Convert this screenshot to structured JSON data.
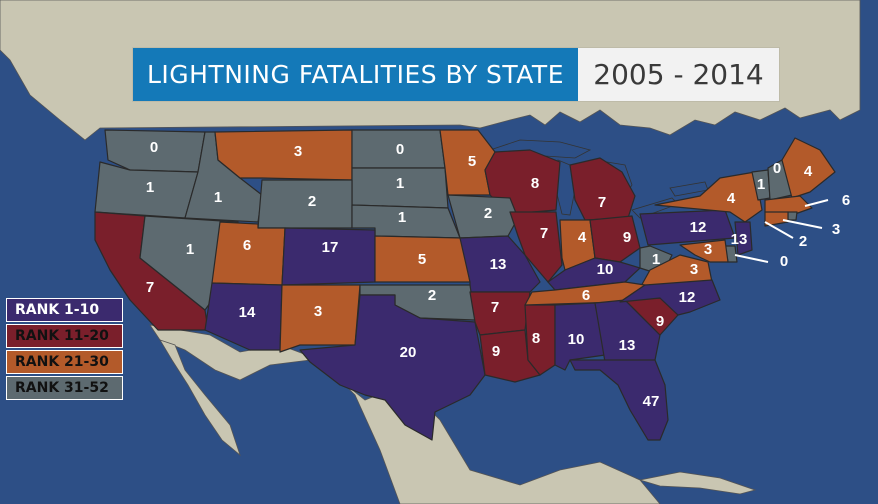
{
  "title": "LIGHTNING FATALITIES BY STATE",
  "years": "2005 - 2014",
  "colors": {
    "ocean": "#2d4f86",
    "land": "#c9c6b2",
    "rank_1_10": "#3b2a6e",
    "rank_11_20": "#7a1f2b",
    "rank_21_30": "#b35a2a",
    "rank_31_52": "#5d6a70"
  },
  "legend": [
    {
      "label": "RANK 1-10",
      "color": "#3b2a6e"
    },
    {
      "label": "RANK 11-20",
      "color": "#7a1f2b"
    },
    {
      "label": "RANK 21-30",
      "color": "#b35a2a"
    },
    {
      "label": "RANK 31-52",
      "color": "#5d6a70"
    }
  ],
  "states": [
    {
      "id": "WA",
      "value": "0",
      "rank_group": "31-52"
    },
    {
      "id": "OR",
      "value": "1",
      "rank_group": "31-52"
    },
    {
      "id": "ID",
      "value": "1",
      "rank_group": "31-52"
    },
    {
      "id": "MT",
      "value": "3",
      "rank_group": "21-30"
    },
    {
      "id": "ND",
      "value": "0",
      "rank_group": "31-52"
    },
    {
      "id": "MN",
      "value": "5",
      "rank_group": "21-30"
    },
    {
      "id": "WI",
      "value": "8",
      "rank_group": "11-20"
    },
    {
      "id": "MI",
      "value": "7",
      "rank_group": "11-20"
    },
    {
      "id": "SD",
      "value": "1",
      "rank_group": "31-52"
    },
    {
      "id": "WY",
      "value": "2",
      "rank_group": "31-52"
    },
    {
      "id": "NE",
      "value": "1",
      "rank_group": "31-52"
    },
    {
      "id": "IA",
      "value": "2",
      "rank_group": "31-52"
    },
    {
      "id": "IL",
      "value": "7",
      "rank_group": "11-20"
    },
    {
      "id": "IN",
      "value": "4",
      "rank_group": "21-30"
    },
    {
      "id": "OH",
      "value": "9",
      "rank_group": "11-20"
    },
    {
      "id": "PA",
      "value": "12",
      "rank_group": "1-10"
    },
    {
      "id": "NY",
      "value": "4",
      "rank_group": "21-30"
    },
    {
      "id": "VT",
      "value": "1",
      "rank_group": "31-52"
    },
    {
      "id": "NH",
      "value": "0",
      "rank_group": "31-52"
    },
    {
      "id": "ME",
      "value": "4",
      "rank_group": "21-30"
    },
    {
      "id": "MA",
      "value": "6",
      "rank_group": "21-30"
    },
    {
      "id": "RI",
      "value": "2",
      "rank_group": "31-52"
    },
    {
      "id": "CT",
      "value": "3",
      "rank_group": "21-30"
    },
    {
      "id": "NJ",
      "value": "13",
      "rank_group": "1-10"
    },
    {
      "id": "DE",
      "value": "0",
      "rank_group": "31-52"
    },
    {
      "id": "MD",
      "value": "3",
      "rank_group": "21-30"
    },
    {
      "id": "CA",
      "value": "7",
      "rank_group": "11-20"
    },
    {
      "id": "NV",
      "value": "1",
      "rank_group": "31-52"
    },
    {
      "id": "UT",
      "value": "6",
      "rank_group": "21-30"
    },
    {
      "id": "CO",
      "value": "17",
      "rank_group": "1-10"
    },
    {
      "id": "KS",
      "value": "5",
      "rank_group": "21-30"
    },
    {
      "id": "MO",
      "value": "13",
      "rank_group": "1-10"
    },
    {
      "id": "KY",
      "value": "10",
      "rank_group": "1-10"
    },
    {
      "id": "WV",
      "value": "1",
      "rank_group": "31-52"
    },
    {
      "id": "VA",
      "value": "3",
      "rank_group": "21-30"
    },
    {
      "id": "AZ",
      "value": "14",
      "rank_group": "1-10"
    },
    {
      "id": "NM",
      "value": "3",
      "rank_group": "21-30"
    },
    {
      "id": "OK",
      "value": "2",
      "rank_group": "31-52"
    },
    {
      "id": "AR",
      "value": "7",
      "rank_group": "11-20"
    },
    {
      "id": "TN",
      "value": "6",
      "rank_group": "21-30"
    },
    {
      "id": "NC",
      "value": "12",
      "rank_group": "1-10"
    },
    {
      "id": "SC",
      "value": "9",
      "rank_group": "11-20"
    },
    {
      "id": "TX",
      "value": "20",
      "rank_group": "1-10"
    },
    {
      "id": "LA",
      "value": "9",
      "rank_group": "11-20"
    },
    {
      "id": "MS",
      "value": "8",
      "rank_group": "11-20"
    },
    {
      "id": "AL",
      "value": "10",
      "rank_group": "1-10"
    },
    {
      "id": "GA",
      "value": "13",
      "rank_group": "1-10"
    },
    {
      "id": "FL",
      "value": "47",
      "rank_group": "1-10"
    }
  ]
}
